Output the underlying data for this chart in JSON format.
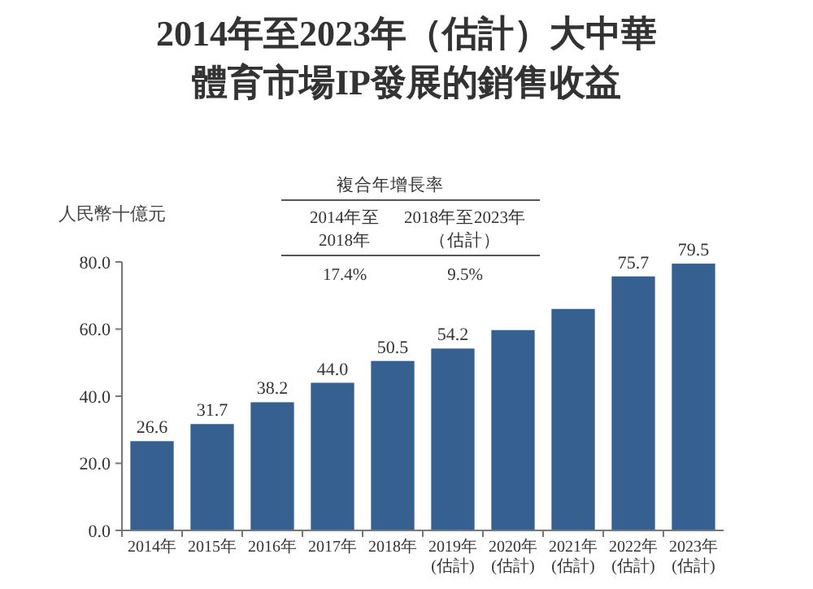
{
  "chart_data": {
    "type": "bar",
    "title": "2014年至2023年（估計）大中華體育市場IP發展的銷售收益",
    "ylabel": "人民幣十億元",
    "categories": [
      "2014年",
      "2015年",
      "2016年",
      "2017年",
      "2018年",
      "2019年(估計)",
      "2020年(估計)",
      "2021年(估計)",
      "2022年(估計)",
      "2023年(估計)"
    ],
    "values": [
      26.6,
      31.7,
      38.2,
      44.0,
      50.5,
      54.2,
      59.7,
      66.0,
      75.7,
      79.5
    ],
    "value_labels": [
      "26.6",
      "31.7",
      "38.2",
      "44.0",
      "50.5",
      "54.2",
      null,
      null,
      "75.7",
      "79.5"
    ],
    "color": "#35608f",
    "ylim": [
      0,
      80
    ],
    "yticks": [
      {
        "value": 0,
        "label": "0.0"
      },
      {
        "value": 20,
        "label": "20.0"
      },
      {
        "value": 40,
        "label": "40.0"
      },
      {
        "value": 60,
        "label": "60.0"
      },
      {
        "value": 80,
        "label": "80.0"
      }
    ],
    "grid": false,
    "annotations": [
      "複合年增長率",
      "2014年至2018年",
      "2018年至2023年（估計）",
      "17.4%",
      "9.5%"
    ]
  }
}
